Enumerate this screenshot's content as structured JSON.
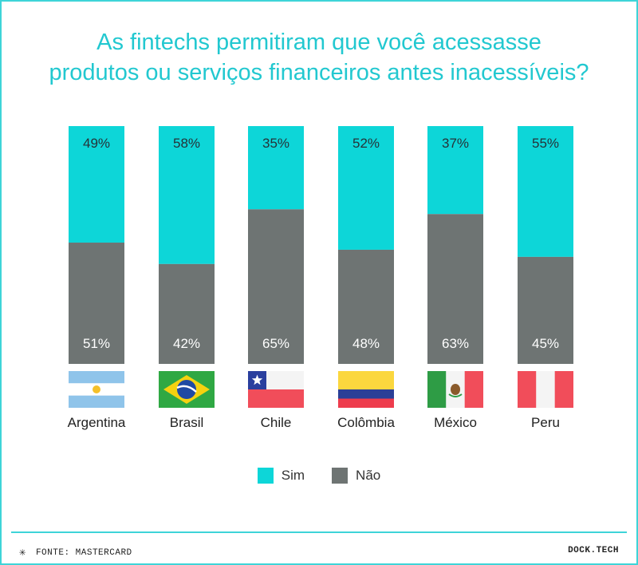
{
  "title": {
    "line1": "As fintechs permitiram que você acessasse",
    "line2": "produtos ou serviços financeiros antes inacessíveis?"
  },
  "chart_data": {
    "type": "bar",
    "stacked": true,
    "categories": [
      "Argentina",
      "Brasil",
      "Chile",
      "Colômbia",
      "México",
      "Peru"
    ],
    "series": [
      {
        "name": "Sim",
        "color": "#0dd6d8",
        "values": [
          49,
          58,
          35,
          52,
          37,
          55
        ]
      },
      {
        "name": "Não",
        "color": "#6e7473",
        "values": [
          51,
          42,
          65,
          48,
          63,
          45
        ]
      }
    ],
    "value_labels": {
      "Sim": [
        "49%",
        "58%",
        "35%",
        "52%",
        "37%",
        "55%"
      ],
      "Não": [
        "51%",
        "42%",
        "65%",
        "48%",
        "63%",
        "45%"
      ]
    },
    "ylim": [
      0,
      100
    ],
    "grid": false,
    "legend_position": "bottom-center"
  },
  "legend": {
    "sim": "Sim",
    "nao": "Não"
  },
  "colors": {
    "accent": "#22c8d0",
    "sim": "#0dd6d8",
    "nao": "#6e7473"
  },
  "flags": [
    "argentina-flag-icon",
    "brazil-flag-icon",
    "chile-flag-icon",
    "colombia-flag-icon",
    "mexico-flag-icon",
    "peru-flag-icon"
  ],
  "footer": {
    "source": "FONTE: MASTERCARD",
    "brand": "DOCK.TECH"
  }
}
